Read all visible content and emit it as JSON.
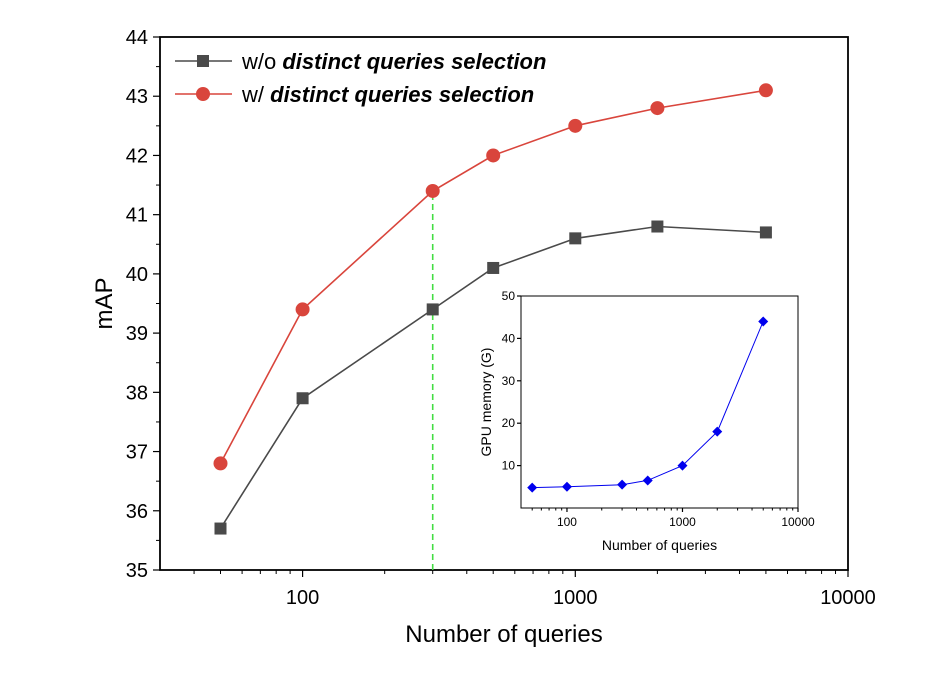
{
  "chart_data": [
    {
      "type": "line",
      "xlabel": "Number of queries",
      "ylabel": "mAP",
      "xscale": "log",
      "xlim": [
        30,
        10000
      ],
      "ylim": [
        35,
        44
      ],
      "x_ticks": [
        100,
        1000,
        10000
      ],
      "x_tick_labels": [
        "100",
        "1000",
        "10000"
      ],
      "y_ticks": [
        35,
        36,
        37,
        38,
        39,
        40,
        41,
        42,
        43,
        44
      ],
      "y_tick_labels": [
        "35",
        "36",
        "37",
        "38",
        "39",
        "40",
        "41",
        "42",
        "43",
        "44"
      ],
      "grid": false,
      "legend": {
        "placement": "top-left",
        "entries": [
          {
            "prefix": "w/o ",
            "emphasis": "distinct queries selection"
          },
          {
            "prefix": "w/ ",
            "emphasis": "distinct queries selection"
          }
        ]
      },
      "series": [
        {
          "name": "w/o distinct queries selection",
          "color": "#4a4a4a",
          "marker": "square",
          "x": [
            50,
            100,
            300,
            500,
            1000,
            2000,
            5000
          ],
          "y": [
            35.7,
            37.9,
            39.4,
            40.1,
            40.6,
            40.8,
            40.7
          ]
        },
        {
          "name": "w/ distinct queries selection",
          "color": "#d9453c",
          "marker": "circle",
          "x": [
            50,
            100,
            300,
            500,
            1000,
            2000,
            5000
          ],
          "y": [
            36.8,
            39.4,
            41.4,
            42.0,
            42.5,
            42.8,
            43.1
          ]
        }
      ],
      "reference_line": {
        "x": 300,
        "y_from": 35,
        "y_to": 41.4,
        "color": "#44dd44",
        "style": "dashed"
      }
    },
    {
      "type": "line",
      "placement": "inset-bottom-right",
      "xlabel": "Number of queries",
      "ylabel": "GPU memory (G)",
      "xscale": "log",
      "xlim": [
        40,
        10000
      ],
      "ylim": [
        0,
        50
      ],
      "x_ticks": [
        100,
        1000,
        10000
      ],
      "x_tick_labels": [
        "100",
        "1000",
        "10000"
      ],
      "y_ticks": [
        10,
        20,
        30,
        40,
        50
      ],
      "y_tick_labels": [
        "10",
        "20",
        "30",
        "40",
        "50"
      ],
      "grid": false,
      "series": [
        {
          "color": "#0000ee",
          "marker": "diamond",
          "x": [
            50,
            100,
            300,
            500,
            1000,
            2000,
            5000
          ],
          "y": [
            4.8,
            5.0,
            5.5,
            6.5,
            10.0,
            18.0,
            44.0
          ]
        }
      ]
    }
  ]
}
